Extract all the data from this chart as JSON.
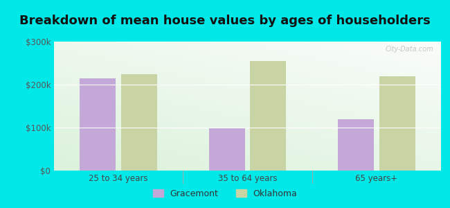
{
  "title": "Breakdown of mean house values by ages of householders",
  "categories": [
    "25 to 34 years",
    "35 to 64 years",
    "65 years+"
  ],
  "gracemont_values": [
    215000,
    100000,
    120000
  ],
  "oklahoma_values": [
    225000,
    255000,
    220000
  ],
  "ylim": [
    0,
    300000
  ],
  "yticks": [
    0,
    100000,
    200000,
    300000
  ],
  "ytick_labels": [
    "$0",
    "$100k",
    "$200k",
    "$300k"
  ],
  "gracemont_color": "#c4a8d8",
  "oklahoma_color": "#c8d4a4",
  "background_outer": "#00e8e8",
  "legend_gracemont": "Gracemont",
  "legend_oklahoma": "Oklahoma",
  "bar_width": 0.28,
  "title_fontsize": 13,
  "tick_fontsize": 8.5,
  "legend_fontsize": 9,
  "watermark": "City-Data.com"
}
